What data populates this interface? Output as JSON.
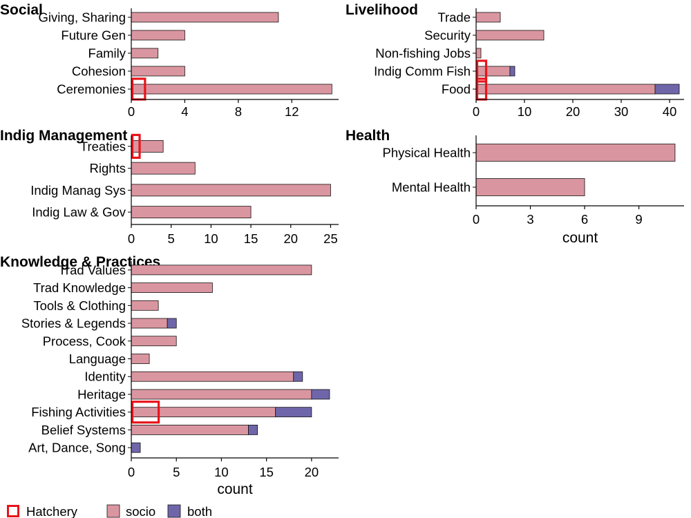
{
  "colors": {
    "socio": "#DA96A0",
    "both": "#6F66AA",
    "hatchery": "#E8141B",
    "bar_border": "#111111",
    "axis": "#000000"
  },
  "legend": {
    "items": [
      {
        "label": "Hatchery",
        "style": "outline",
        "color_key": "hatchery"
      },
      {
        "label": "socio",
        "style": "fill",
        "color_key": "socio"
      },
      {
        "label": "both",
        "style": "fill",
        "color_key": "both"
      }
    ]
  },
  "chart_data": [
    {
      "type": "bar",
      "orientation": "horizontal",
      "stacked": true,
      "title": "Social",
      "xlabel": "",
      "xlim": [
        0,
        15.5
      ],
      "xticks": [
        0,
        4,
        8,
        12
      ],
      "categories": [
        "Giving, Sharing",
        "Future Gen",
        "Family",
        "Cohesion",
        "Ceremonies"
      ],
      "series": [
        {
          "name": "socio",
          "values": [
            11,
            4,
            2,
            4,
            15
          ]
        },
        {
          "name": "both",
          "values": [
            0,
            0,
            0,
            0,
            0
          ]
        }
      ],
      "hatchery": [
        0,
        0,
        0,
        0,
        1
      ]
    },
    {
      "type": "bar",
      "orientation": "horizontal",
      "stacked": true,
      "title": "Livelihood",
      "xlabel": "",
      "xlim": [
        0,
        43
      ],
      "xticks": [
        0,
        10,
        20,
        30,
        40
      ],
      "categories": [
        "Trade",
        "Security",
        "Non-fishing Jobs",
        "Indig Comm Fish",
        "Food"
      ],
      "series": [
        {
          "name": "socio",
          "values": [
            5,
            14,
            1,
            7,
            37
          ]
        },
        {
          "name": "both",
          "values": [
            0,
            0,
            0,
            1,
            5
          ]
        }
      ],
      "hatchery": [
        0,
        0,
        0,
        2,
        2
      ]
    },
    {
      "type": "bar",
      "orientation": "horizontal",
      "stacked": true,
      "title": "Indig Management",
      "xlabel": "",
      "xlim": [
        0,
        26
      ],
      "xticks": [
        0,
        5,
        10,
        15,
        20,
        25
      ],
      "categories": [
        "Treaties",
        "Rights",
        "Indig Manag Sys",
        "Indig Law & Gov"
      ],
      "series": [
        {
          "name": "socio",
          "values": [
            4,
            8,
            25,
            15
          ]
        },
        {
          "name": "both",
          "values": [
            0,
            0,
            0,
            0
          ]
        }
      ],
      "hatchery": [
        1,
        0,
        0,
        0
      ]
    },
    {
      "type": "bar",
      "orientation": "horizontal",
      "stacked": true,
      "title": "Health",
      "xlabel": "count",
      "xlim": [
        0,
        11.5
      ],
      "xticks": [
        0,
        3,
        6,
        9
      ],
      "categories": [
        "Physical Health",
        "Mental Health"
      ],
      "series": [
        {
          "name": "socio",
          "values": [
            11,
            6
          ]
        },
        {
          "name": "both",
          "values": [
            0,
            0
          ]
        }
      ],
      "hatchery": [
        0,
        0
      ]
    },
    {
      "type": "bar",
      "orientation": "horizontal",
      "stacked": true,
      "title": "Knowledge & Practices",
      "xlabel": "count",
      "xlim": [
        0,
        23
      ],
      "xticks": [
        0,
        5,
        10,
        15,
        20
      ],
      "categories": [
        "Trad Values",
        "Trad Knowledge",
        "Tools & Clothing",
        "Stories & Legends",
        "Process, Cook",
        "Language",
        "Identity",
        "Heritage",
        "Fishing Activities",
        "Belief Systems",
        "Art, Dance, Song"
      ],
      "series": [
        {
          "name": "socio",
          "values": [
            20,
            9,
            3,
            4,
            5,
            2,
            18,
            20,
            16,
            13,
            0
          ]
        },
        {
          "name": "both",
          "values": [
            0,
            0,
            0,
            1,
            0,
            0,
            1,
            2,
            4,
            1,
            1
          ]
        }
      ],
      "hatchery": [
        0,
        0,
        0,
        0,
        0,
        0,
        0,
        0,
        3,
        0,
        0
      ]
    }
  ]
}
